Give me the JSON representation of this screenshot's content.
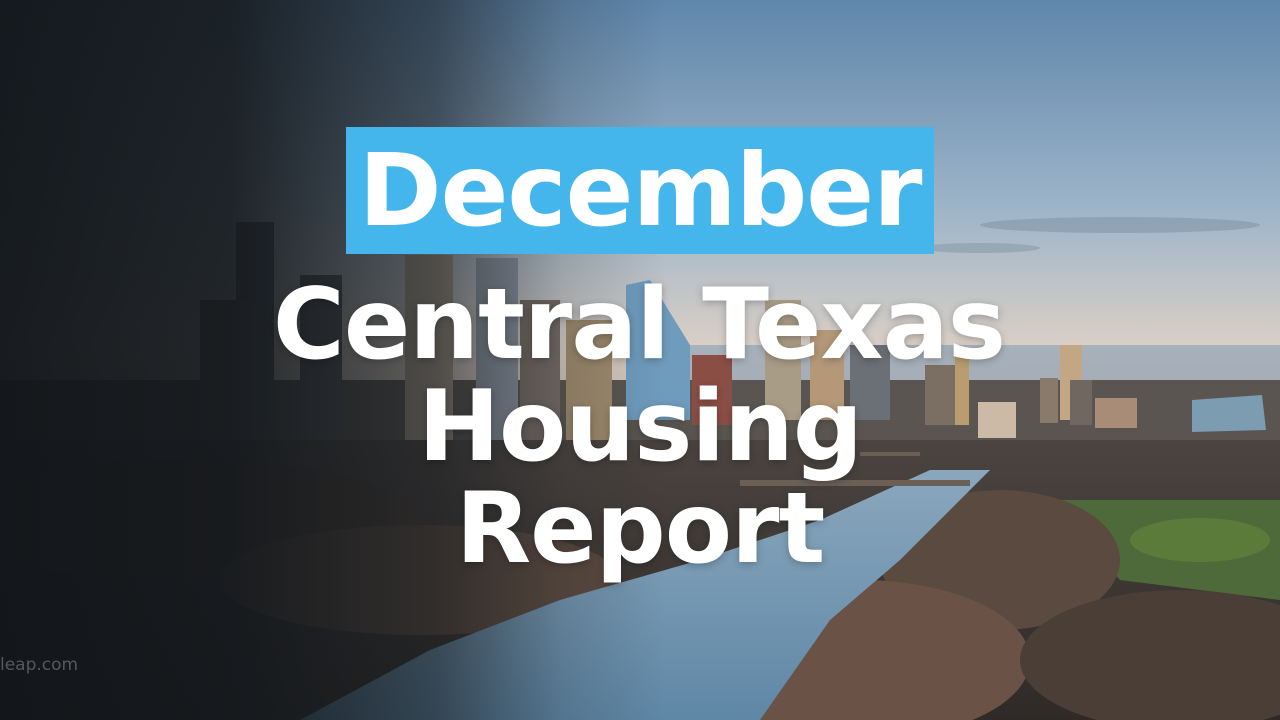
{
  "headline": {
    "month": "December",
    "line1": "Central Texas",
    "line2": "Housing",
    "line3": "Report"
  },
  "watermark": "leap.com",
  "colors": {
    "month_highlight": "#45b6ec",
    "text": "#ffffff",
    "sky_top": "#5f86ab",
    "sky_horizon": "#d9cfc6",
    "river": "#6f98b6",
    "trees": "#5b4a3f"
  }
}
